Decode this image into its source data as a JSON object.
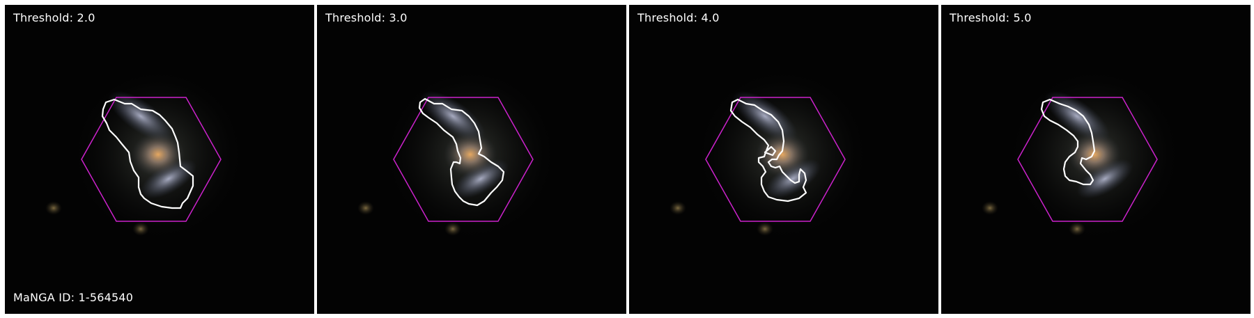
{
  "panels": [
    {
      "label": "Threshold: 2.0"
    },
    {
      "label": "Threshold: 3.0"
    },
    {
      "label": "Threshold: 4.0"
    },
    {
      "label": "Threshold: 5.0"
    }
  ],
  "manga_id_label": "MaNGA ID: 1-564540",
  "colors": {
    "hexagon": "#cc22cc",
    "contour": "#ffffff",
    "background": "#030303",
    "divider": "#ffffff"
  }
}
